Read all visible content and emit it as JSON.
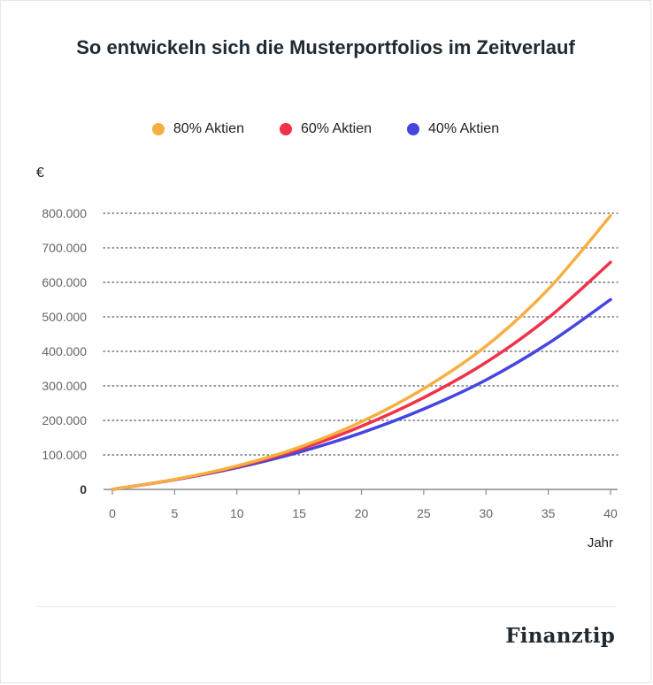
{
  "title": "So entwickeln sich die Musterportfolios im Zeitverlauf",
  "brand": "Finanztip",
  "chart_data": {
    "type": "line",
    "title": "So entwickeln sich die Musterportfolios im Zeitverlauf",
    "ylabel": "€",
    "xlabel": "Jahr",
    "xlim": [
      0,
      40
    ],
    "ylim": [
      0,
      800000
    ],
    "x_ticks": [
      0,
      5,
      10,
      15,
      20,
      25,
      30,
      35,
      40
    ],
    "y_ticks": [
      {
        "value": 0,
        "label": "0"
      },
      {
        "value": 100000,
        "label": "100.000"
      },
      {
        "value": 200000,
        "label": "200.000"
      },
      {
        "value": 300000,
        "label": "300.000"
      },
      {
        "value": 400000,
        "label": "400.000"
      },
      {
        "value": 500000,
        "label": "500.000"
      },
      {
        "value": 600000,
        "label": "600.000"
      },
      {
        "value": 700000,
        "label": "700.000"
      },
      {
        "value": 800000,
        "label": "800.000"
      }
    ],
    "grid": "dotted horizontal",
    "legend_position": "top-center",
    "x": [
      0,
      5,
      10,
      15,
      20,
      25,
      30,
      35,
      40
    ],
    "series": [
      {
        "name": "80% Aktien",
        "color": "#f5b041",
        "values": [
          0,
          29000,
          68000,
          122000,
          196000,
          292000,
          415000,
          580000,
          793000
        ]
      },
      {
        "name": "60% Aktien",
        "color": "#f0324a",
        "values": [
          0,
          28500,
          65500,
          116000,
          183000,
          266000,
          368000,
          497000,
          658000
        ]
      },
      {
        "name": "40% Aktien",
        "color": "#4545e0",
        "values": [
          0,
          28000,
          63000,
          108000,
          164000,
          233000,
          317000,
          423000,
          550000
        ]
      }
    ]
  }
}
